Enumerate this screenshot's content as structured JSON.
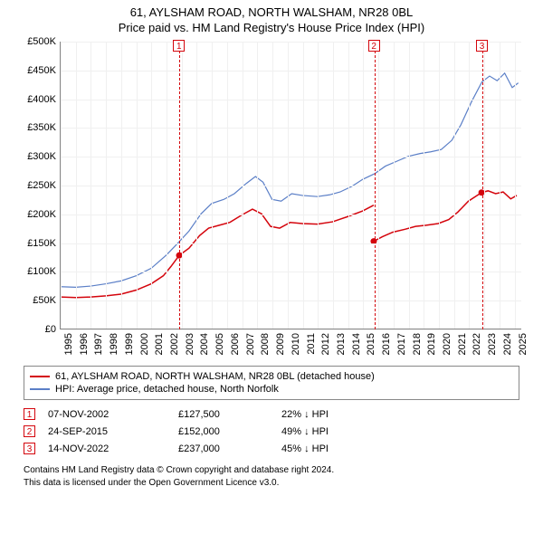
{
  "title": {
    "line1": "61, AYLSHAM ROAD, NORTH WALSHAM, NR28 0BL",
    "line2": "Price paid vs. HM Land Registry's House Price Index (HPI)"
  },
  "chart": {
    "type": "line",
    "background_color": "#ffffff",
    "grid_color": "#f0f0f0",
    "axis_color": "#888888",
    "xlim": [
      1995,
      2025.5
    ],
    "ylim": [
      0,
      500000
    ],
    "y_ticks": [
      0,
      50000,
      100000,
      150000,
      200000,
      250000,
      300000,
      350000,
      400000,
      450000,
      500000
    ],
    "y_tick_labels": [
      "£0",
      "£50K",
      "£100K",
      "£150K",
      "£200K",
      "£250K",
      "£300K",
      "£350K",
      "£400K",
      "£450K",
      "£500K"
    ],
    "x_ticks": [
      1995,
      1996,
      1997,
      1998,
      1999,
      2000,
      2001,
      2002,
      2003,
      2004,
      2005,
      2006,
      2007,
      2008,
      2009,
      2010,
      2011,
      2012,
      2013,
      2014,
      2015,
      2016,
      2017,
      2018,
      2019,
      2020,
      2021,
      2022,
      2023,
      2024,
      2025
    ],
    "label_fontsize": 11,
    "series": [
      {
        "name": "61, AYLSHAM ROAD, NORTH WALSHAM, NR28 0BL (detached house)",
        "color": "#d4040c",
        "line_width": 1.5,
        "segments": [
          [
            [
              1995.0,
              55000
            ],
            [
              1996.0,
              54000
            ],
            [
              1997.0,
              55000
            ],
            [
              1998.0,
              57000
            ],
            [
              1999.0,
              60000
            ],
            [
              2000.0,
              67000
            ],
            [
              2001.0,
              78000
            ],
            [
              2001.8,
              92000
            ],
            [
              2002.3,
              108000
            ],
            [
              2002.85,
              127500
            ]
          ],
          [
            [
              2002.85,
              127500
            ],
            [
              2003.5,
              140000
            ],
            [
              2004.2,
              162000
            ],
            [
              2004.8,
              175000
            ],
            [
              2005.5,
              180000
            ],
            [
              2006.2,
              185000
            ],
            [
              2007.0,
              198000
            ],
            [
              2007.7,
              208000
            ],
            [
              2008.3,
              200000
            ],
            [
              2008.9,
              178000
            ],
            [
              2009.5,
              175000
            ],
            [
              2010.2,
              185000
            ],
            [
              2011.0,
              183000
            ],
            [
              2012.0,
              182000
            ],
            [
              2013.0,
              186000
            ],
            [
              2014.0,
              195000
            ],
            [
              2015.0,
              205000
            ],
            [
              2015.73,
              215000
            ]
          ],
          [
            [
              2015.73,
              152000
            ],
            [
              2016.3,
              160000
            ],
            [
              2017.0,
              168000
            ],
            [
              2017.8,
              173000
            ],
            [
              2018.5,
              178000
            ],
            [
              2019.2,
              180000
            ],
            [
              2020.0,
              183000
            ],
            [
              2020.7,
              190000
            ],
            [
              2021.3,
              203000
            ],
            [
              2022.0,
              222000
            ],
            [
              2022.87,
              237000
            ]
          ],
          [
            [
              2022.87,
              237000
            ],
            [
              2023.3,
              240000
            ],
            [
              2023.8,
              235000
            ],
            [
              2024.3,
              238000
            ],
            [
              2024.8,
              226000
            ],
            [
              2025.2,
              232000
            ]
          ]
        ],
        "sale_points": [
          {
            "x": 2002.85,
            "y": 127500
          },
          {
            "x": 2015.73,
            "y": 152000
          },
          {
            "x": 2022.87,
            "y": 237000
          }
        ]
      },
      {
        "name": "HPI: Average price, detached house, North Norfolk",
        "color": "#5b7fc7",
        "line_width": 1.2,
        "segments": [
          [
            [
              1995.0,
              73000
            ],
            [
              1996.0,
              72000
            ],
            [
              1997.0,
              74000
            ],
            [
              1998.0,
              78000
            ],
            [
              1999.0,
              83000
            ],
            [
              2000.0,
              92000
            ],
            [
              2001.0,
              105000
            ],
            [
              2002.0,
              128000
            ],
            [
              2002.8,
              150000
            ],
            [
              2003.5,
              170000
            ],
            [
              2004.3,
              200000
            ],
            [
              2005.0,
              218000
            ],
            [
              2005.8,
              225000
            ],
            [
              2006.5,
              235000
            ],
            [
              2007.3,
              253000
            ],
            [
              2007.9,
              265000
            ],
            [
              2008.4,
              255000
            ],
            [
              2009.0,
              225000
            ],
            [
              2009.6,
              222000
            ],
            [
              2010.3,
              235000
            ],
            [
              2011.0,
              232000
            ],
            [
              2012.0,
              230000
            ],
            [
              2012.8,
              233000
            ],
            [
              2013.5,
              238000
            ],
            [
              2014.3,
              248000
            ],
            [
              2015.0,
              260000
            ],
            [
              2015.8,
              270000
            ],
            [
              2016.5,
              283000
            ],
            [
              2017.3,
              292000
            ],
            [
              2018.0,
              300000
            ],
            [
              2018.8,
              305000
            ],
            [
              2019.5,
              308000
            ],
            [
              2020.2,
              312000
            ],
            [
              2020.9,
              328000
            ],
            [
              2021.5,
              355000
            ],
            [
              2022.2,
              395000
            ],
            [
              2022.9,
              430000
            ],
            [
              2023.4,
              440000
            ],
            [
              2023.9,
              432000
            ],
            [
              2024.4,
              445000
            ],
            [
              2024.9,
              420000
            ],
            [
              2025.3,
              428000
            ]
          ]
        ]
      }
    ],
    "markers": [
      {
        "n": "1",
        "x": 2002.85,
        "color": "#d4040c"
      },
      {
        "n": "2",
        "x": 2015.73,
        "color": "#d4040c"
      },
      {
        "n": "3",
        "x": 2022.87,
        "color": "#d4040c"
      }
    ]
  },
  "legend": {
    "items": [
      {
        "color": "#d4040c",
        "label": "61, AYLSHAM ROAD, NORTH WALSHAM, NR28 0BL (detached house)"
      },
      {
        "color": "#5b7fc7",
        "label": "HPI: Average price, detached house, North Norfolk"
      }
    ]
  },
  "sales": [
    {
      "n": "1",
      "color": "#d4040c",
      "date": "07-NOV-2002",
      "price": "£127,500",
      "diff": "22% ↓ HPI"
    },
    {
      "n": "2",
      "color": "#d4040c",
      "date": "24-SEP-2015",
      "price": "£152,000",
      "diff": "49% ↓ HPI"
    },
    {
      "n": "3",
      "color": "#d4040c",
      "date": "14-NOV-2022",
      "price": "£237,000",
      "diff": "45% ↓ HPI"
    }
  ],
  "footer": {
    "line1": "Contains HM Land Registry data © Crown copyright and database right 2024.",
    "line2": "This data is licensed under the Open Government Licence v3.0."
  }
}
